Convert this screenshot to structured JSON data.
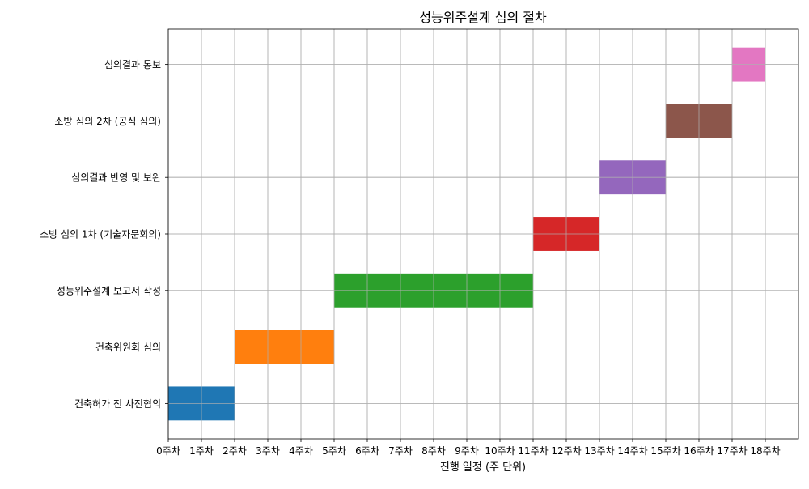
{
  "chart_data": {
    "type": "gantt",
    "title": "성능위주설계 심의 절차",
    "xlabel": "진행 일정 (주 단위)",
    "ylabel": "",
    "xlim": [
      0,
      19
    ],
    "x_ticks": [
      0,
      1,
      2,
      3,
      4,
      5,
      6,
      7,
      8,
      9,
      10,
      11,
      12,
      13,
      14,
      15,
      16,
      17,
      18
    ],
    "x_tick_labels": [
      "0주차",
      "1주차",
      "2주차",
      "3주차",
      "4주차",
      "5주차",
      "6주차",
      "7주차",
      "8주차",
      "9주차",
      "10주차",
      "11주차",
      "12주차",
      "13주차",
      "14주차",
      "15주차",
      "16주차",
      "17주차",
      "18주차"
    ],
    "grid": true,
    "tasks": [
      {
        "label": "건축허가 전 사전협의",
        "start": 0,
        "end": 2,
        "color": "#1f77b4"
      },
      {
        "label": "건축위원회 심의",
        "start": 2,
        "end": 5,
        "color": "#ff7f0e"
      },
      {
        "label": "성능위주설계 보고서 작성",
        "start": 5,
        "end": 11,
        "color": "#2ca02c"
      },
      {
        "label": "소방 심의 1차 (기술자문회의)",
        "start": 11,
        "end": 13,
        "color": "#d62728"
      },
      {
        "label": "심의결과 반영 및 보완",
        "start": 13,
        "end": 15,
        "color": "#9467bd"
      },
      {
        "label": "소방 심의 2차 (공식 심의)",
        "start": 15,
        "end": 17,
        "color": "#8c564b"
      },
      {
        "label": "심의결과 통보",
        "start": 17,
        "end": 18,
        "color": "#e377c2"
      }
    ]
  }
}
